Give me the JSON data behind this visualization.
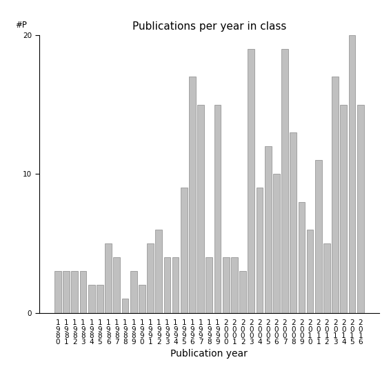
{
  "title": "Publications per year in class",
  "xlabel": "Publication year",
  "ylabel": "#P",
  "categories": [
    "1980",
    "1981",
    "1982",
    "1983",
    "1984",
    "1985",
    "1986",
    "1987",
    "1988",
    "1989",
    "1990",
    "1991",
    "1992",
    "1993",
    "1994",
    "1995",
    "1996",
    "1997",
    "1998",
    "1999",
    "2000",
    "2001",
    "2002",
    "2003",
    "2004",
    "2005",
    "2006",
    "2007",
    "2008",
    "2009",
    "2010",
    "2011",
    "2012",
    "2013",
    "2014",
    "2015",
    "2016"
  ],
  "values": [
    3,
    3,
    3,
    3,
    2,
    2,
    5,
    4,
    1,
    3,
    2,
    5,
    6,
    4,
    4,
    9,
    17,
    15,
    4,
    15,
    4,
    4,
    3,
    19,
    9,
    12,
    10,
    19,
    13,
    8,
    6,
    11,
    5,
    17,
    15,
    20,
    15
  ],
  "bar_color": "#c0c0c0",
  "bar_edge_color": "#888888",
  "ylim": [
    0,
    20
  ],
  "yticks": [
    0,
    10,
    20
  ],
  "background_color": "#ffffff",
  "title_fontsize": 11,
  "xlabel_fontsize": 10,
  "tick_fontsize": 7.5
}
